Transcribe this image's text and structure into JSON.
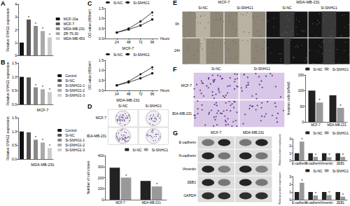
{
  "chart_data": [
    {
      "panel": "A",
      "type": "bar",
      "y_label": "Relative SNHG1 expression",
      "categories": [
        "MCF-10a",
        "MCF-7",
        "MDA-MB-231",
        "ZR-75-30",
        "MDA-MB-453"
      ],
      "values": [
        1.0,
        2.8,
        2.3,
        1.9,
        1.4
      ],
      "colors": [
        "#111111",
        "#555555",
        "#888888",
        "#aaaaaa",
        "#cccccc"
      ],
      "marks": [
        null,
        "*",
        "*",
        "*",
        "*"
      ],
      "ylim": [
        0,
        4
      ],
      "yticks": [
        0,
        1,
        2,
        3,
        4
      ],
      "legend": "right",
      "tick_labels": "y"
    },
    {
      "panel": "B",
      "type": "bar",
      "title": "MCF-7",
      "y_label": "Relative SNHG1 expression",
      "categories": [
        "Control",
        "Si-NC",
        "Si-SNHG1-1",
        "Si-SNHG1-2",
        "Si-SNHG1-3"
      ],
      "values": [
        1.0,
        0.98,
        0.62,
        0.55,
        0.45
      ],
      "colors": [
        "#111111",
        "#555555",
        "#888888",
        "#aaaaaa",
        "#cccccc"
      ],
      "marks": [
        null,
        null,
        "*",
        "*",
        "*"
      ],
      "ylim": [
        0,
        1.5
      ],
      "yticks": [
        {
          "value": 0,
          "label": "0.0"
        },
        {
          "value": 0.5,
          "label": "0.5"
        },
        {
          "value": 1,
          "label": "1.0"
        },
        {
          "value": 1.5,
          "label": "1.5"
        }
      ],
      "legend": "right",
      "tick_labels": "y"
    },
    {
      "type": "bar",
      "title": "MDA-MB-231",
      "y_label": "Relative SNHG1 expression",
      "categories": [
        "Control",
        "Si-NC",
        "Si-SNHG1-1",
        "Si-SNHG1-2",
        "Si-SNHG1-3"
      ],
      "values": [
        1.0,
        0.97,
        0.7,
        0.6,
        0.4
      ],
      "colors": [
        "#111111",
        "#555555",
        "#888888",
        "#aaaaaa",
        "#cccccc"
      ],
      "marks": [
        null,
        null,
        "*",
        "*",
        "*"
      ],
      "ylim": [
        0,
        1.5
      ],
      "yticks": [
        {
          "value": 0,
          "label": "0.0"
        },
        {
          "value": 0.5,
          "label": "0.5"
        },
        {
          "value": 1,
          "label": "1.0"
        },
        {
          "value": 1.5,
          "label": "1.5"
        }
      ],
      "legend": "right",
      "tick_labels": "y"
    },
    {
      "panel": "C",
      "type": "line",
      "title": "MCF-7",
      "x_label": "Hours",
      "y_label": "OD value (450nm)",
      "x": [
        24,
        48,
        72,
        96
      ],
      "xlim": [
        0,
        108
      ],
      "xticks": [
        24,
        48,
        72,
        96
      ],
      "ylim": [
        0,
        1.5
      ],
      "yticks": [
        {
          "value": 0,
          "label": "0.0"
        },
        {
          "value": 0.5,
          "label": "0.5"
        },
        {
          "value": 1,
          "label": "1.0"
        },
        {
          "value": 1.5,
          "label": "1.5"
        }
      ],
      "legend": "upper left",
      "series": [
        {
          "name": "Si-NC",
          "color": "#111111",
          "marker": "circle",
          "line_style": "solid",
          "values": [
            0.3,
            0.5,
            0.85,
            1.3
          ]
        },
        {
          "name": "Si-SNHG1",
          "color": "#111111",
          "marker": "square",
          "line_style": "solid",
          "values": [
            0.3,
            0.45,
            0.65,
            0.95
          ],
          "marks": [
            null,
            null,
            null,
            "*"
          ]
        }
      ]
    },
    {
      "type": "line",
      "title": "MDA-MB-231",
      "x_label": "Hours",
      "y_label": "OD value (450nm)",
      "x": [
        24,
        48,
        72,
        96
      ],
      "xlim": [
        0,
        108
      ],
      "xticks": [
        24,
        48,
        72,
        96
      ],
      "ylim": [
        0,
        1.5
      ],
      "yticks": [
        {
          "value": 0,
          "label": "0.0"
        },
        {
          "value": 0.5,
          "label": "0.5"
        },
        {
          "value": 1,
          "label": "1.0"
        },
        {
          "value": 1.5,
          "label": "1.5"
        }
      ],
      "legend": "upper left",
      "series": [
        {
          "name": "Si-NC",
          "color": "#111111",
          "marker": "circle",
          "line_style": "solid",
          "values": [
            0.25,
            0.45,
            0.8,
            1.15
          ]
        },
        {
          "name": "Si-SNHG1",
          "color": "#111111",
          "marker": "square",
          "line_style": "solid",
          "values": [
            0.25,
            0.4,
            0.6,
            0.85
          ],
          "marks": [
            null,
            null,
            null,
            "*"
          ]
        }
      ]
    },
    {
      "type": "bar",
      "y_label": "Number of cell clones",
      "categories": [
        "MCF-7",
        "MDA-MB-231"
      ],
      "ylim": [
        0,
        400
      ],
      "yticks": [
        0,
        100,
        200,
        300,
        400
      ],
      "legend": "upper right",
      "series": [
        {
          "name": "Si-NC",
          "color": "#222222",
          "values": [
            290,
            170
          ]
        },
        {
          "name": "Si-SNHG1",
          "color": "#999999",
          "values": [
            200,
            120
          ],
          "marks": [
            "*",
            "*"
          ]
        }
      ]
    },
    {
      "type": "bar",
      "y_label": "Invasion cells (n/field)",
      "categories": [
        "MCF-7",
        "MDA-MB-231"
      ],
      "ylim": [
        0,
        150
      ],
      "yticks": [
        0,
        50,
        100,
        150
      ],
      "legend": "upper right",
      "series": [
        {
          "name": "Si-NC",
          "color": "#222222",
          "values": [
            100,
            85
          ]
        },
        {
          "name": "Si-SNHG1",
          "color": "#999999",
          "values": [
            62,
            45
          ],
          "marks": [
            "*",
            "*"
          ]
        }
      ]
    },
    {
      "type": "bar",
      "y_label": "Relative protein expression",
      "categories": [
        "E-cadherin",
        "N-cadherin",
        "Vimentin",
        "ZEB1"
      ],
      "ylim": [
        0,
        3
      ],
      "yticks": [
        0,
        1,
        2,
        3
      ],
      "legend": "upper right",
      "series": [
        {
          "name": "Si-NC",
          "color": "#222222",
          "values": [
            1,
            1,
            1,
            1
          ]
        },
        {
          "name": "Si-SNHG1",
          "color": "#999999",
          "values": [
            2.6,
            0.5,
            0.45,
            0.5
          ],
          "marks": [
            "*",
            "*",
            "*",
            "*"
          ]
        }
      ]
    },
    {
      "type": "bar",
      "y_label": "Relative protein expression",
      "categories": [
        "E-cadherin",
        "N-cadherin",
        "Vimentin",
        "ZEB1"
      ],
      "ylim": [
        0,
        3
      ],
      "yticks": [
        0,
        1,
        2,
        3
      ],
      "legend": "upper right",
      "series": [
        {
          "name": "Si-NC",
          "color": "#222222",
          "values": [
            1,
            1,
            1,
            1
          ]
        },
        {
          "name": "Si-SNHG1",
          "color": "#999999",
          "values": [
            2.2,
            0.55,
            0.6,
            0.4
          ],
          "marks": [
            "*",
            "*",
            "*",
            "*"
          ]
        }
      ]
    }
  ],
  "image_panels": [
    {
      "panel": "D",
      "type": "colony",
      "columns": [
        "Si-NC",
        "Si-SNHG1"
      ],
      "rows": [
        "MCF-7",
        "MDA-MB-231"
      ]
    },
    {
      "panel": "E",
      "type": "wound",
      "groups": [
        "MCF-7",
        "MDA-MB-231"
      ],
      "columns": [
        "Si-NC",
        "Si-SNHG1"
      ],
      "rows": [
        "0h",
        "24h"
      ]
    },
    {
      "panel": "F",
      "type": "transwell",
      "columns": [
        "Si-NC",
        "Si-SNHG1"
      ],
      "rows": [
        "MCF-7",
        "MDA-MB-231"
      ]
    },
    {
      "panel": "G",
      "type": "blot",
      "columns": [
        "MCF-7",
        "MDA-MB-231"
      ],
      "rows": [
        "E-cadherin",
        "N-cadherin",
        "Vimentin",
        "ZEB1",
        "GAPDH"
      ]
    }
  ]
}
